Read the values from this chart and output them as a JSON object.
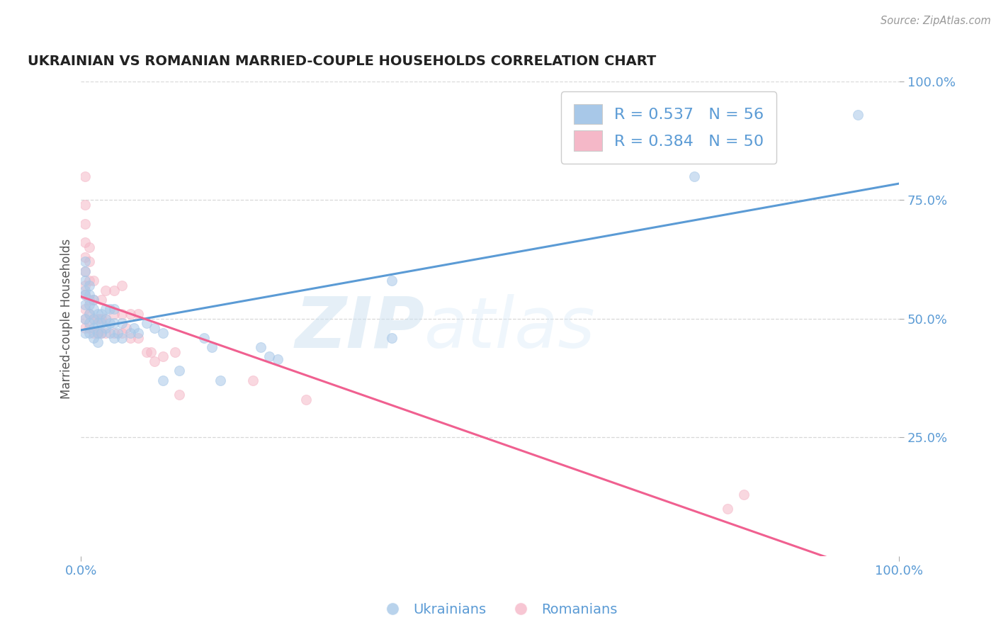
{
  "title": "UKRAINIAN VS ROMANIAN MARRIED-COUPLE HOUSEHOLDS CORRELATION CHART",
  "source": "Source: ZipAtlas.com",
  "ylabel": "Married-couple Households",
  "xlim": [
    0,
    1.0
  ],
  "ylim": [
    0,
    1.0
  ],
  "xtick_labels": [
    "0.0%",
    "100.0%"
  ],
  "ytick_labels": [
    "25.0%",
    "50.0%",
    "75.0%",
    "100.0%"
  ],
  "ytick_positions": [
    0.25,
    0.5,
    0.75,
    1.0
  ],
  "watermark_zip": "ZIP",
  "watermark_atlas": "atlas",
  "legend_r_ukr": "R = 0.537",
  "legend_n_ukr": "N = 56",
  "legend_r_rom": "R = 0.384",
  "legend_n_rom": "N = 50",
  "ukr_color": "#a8c8e8",
  "rom_color": "#f5b8c8",
  "ukr_line_color": "#5b9bd5",
  "rom_line_color": "#f06090",
  "background_color": "#ffffff",
  "grid_color": "#d8d8d8",
  "label_color": "#5b9bd5",
  "ukr_points": [
    [
      0.005,
      0.47
    ],
    [
      0.005,
      0.5
    ],
    [
      0.005,
      0.53
    ],
    [
      0.005,
      0.55
    ],
    [
      0.005,
      0.56
    ],
    [
      0.005,
      0.58
    ],
    [
      0.005,
      0.6
    ],
    [
      0.005,
      0.62
    ],
    [
      0.01,
      0.47
    ],
    [
      0.01,
      0.49
    ],
    [
      0.01,
      0.51
    ],
    [
      0.01,
      0.53
    ],
    [
      0.01,
      0.55
    ],
    [
      0.01,
      0.57
    ],
    [
      0.015,
      0.46
    ],
    [
      0.015,
      0.48
    ],
    [
      0.015,
      0.5
    ],
    [
      0.015,
      0.52
    ],
    [
      0.015,
      0.54
    ],
    [
      0.02,
      0.45
    ],
    [
      0.02,
      0.47
    ],
    [
      0.02,
      0.49
    ],
    [
      0.02,
      0.51
    ],
    [
      0.025,
      0.47
    ],
    [
      0.025,
      0.49
    ],
    [
      0.025,
      0.51
    ],
    [
      0.03,
      0.48
    ],
    [
      0.03,
      0.5
    ],
    [
      0.03,
      0.52
    ],
    [
      0.035,
      0.47
    ],
    [
      0.035,
      0.49
    ],
    [
      0.035,
      0.52
    ],
    [
      0.04,
      0.46
    ],
    [
      0.04,
      0.49
    ],
    [
      0.04,
      0.52
    ],
    [
      0.045,
      0.47
    ],
    [
      0.05,
      0.46
    ],
    [
      0.05,
      0.49
    ],
    [
      0.06,
      0.47
    ],
    [
      0.065,
      0.48
    ],
    [
      0.07,
      0.47
    ],
    [
      0.08,
      0.49
    ],
    [
      0.09,
      0.48
    ],
    [
      0.1,
      0.37
    ],
    [
      0.1,
      0.47
    ],
    [
      0.12,
      0.39
    ],
    [
      0.15,
      0.46
    ],
    [
      0.16,
      0.44
    ],
    [
      0.17,
      0.37
    ],
    [
      0.22,
      0.44
    ],
    [
      0.23,
      0.42
    ],
    [
      0.24,
      0.415
    ],
    [
      0.38,
      0.46
    ],
    [
      0.38,
      0.58
    ],
    [
      0.75,
      0.8
    ],
    [
      0.95,
      0.93
    ]
  ],
  "rom_points": [
    [
      0.005,
      0.48
    ],
    [
      0.005,
      0.5
    ],
    [
      0.005,
      0.52
    ],
    [
      0.005,
      0.55
    ],
    [
      0.005,
      0.57
    ],
    [
      0.005,
      0.6
    ],
    [
      0.005,
      0.63
    ],
    [
      0.005,
      0.66
    ],
    [
      0.005,
      0.7
    ],
    [
      0.005,
      0.74
    ],
    [
      0.005,
      0.8
    ],
    [
      0.01,
      0.48
    ],
    [
      0.01,
      0.51
    ],
    [
      0.01,
      0.54
    ],
    [
      0.01,
      0.58
    ],
    [
      0.01,
      0.62
    ],
    [
      0.01,
      0.65
    ],
    [
      0.015,
      0.47
    ],
    [
      0.015,
      0.5
    ],
    [
      0.015,
      0.54
    ],
    [
      0.015,
      0.58
    ],
    [
      0.02,
      0.47
    ],
    [
      0.02,
      0.5
    ],
    [
      0.025,
      0.47
    ],
    [
      0.025,
      0.5
    ],
    [
      0.025,
      0.54
    ],
    [
      0.03,
      0.47
    ],
    [
      0.03,
      0.5
    ],
    [
      0.03,
      0.56
    ],
    [
      0.04,
      0.47
    ],
    [
      0.04,
      0.51
    ],
    [
      0.04,
      0.56
    ],
    [
      0.05,
      0.47
    ],
    [
      0.05,
      0.51
    ],
    [
      0.05,
      0.57
    ],
    [
      0.055,
      0.48
    ],
    [
      0.06,
      0.46
    ],
    [
      0.06,
      0.51
    ],
    [
      0.07,
      0.46
    ],
    [
      0.07,
      0.51
    ],
    [
      0.08,
      0.43
    ],
    [
      0.085,
      0.43
    ],
    [
      0.09,
      0.41
    ],
    [
      0.1,
      0.42
    ],
    [
      0.115,
      0.43
    ],
    [
      0.12,
      0.34
    ],
    [
      0.21,
      0.37
    ],
    [
      0.275,
      0.33
    ],
    [
      0.79,
      0.1
    ],
    [
      0.81,
      0.13
    ]
  ],
  "marker_size": 100,
  "marker_alpha": 0.55,
  "marker_linewidth": 0.8
}
